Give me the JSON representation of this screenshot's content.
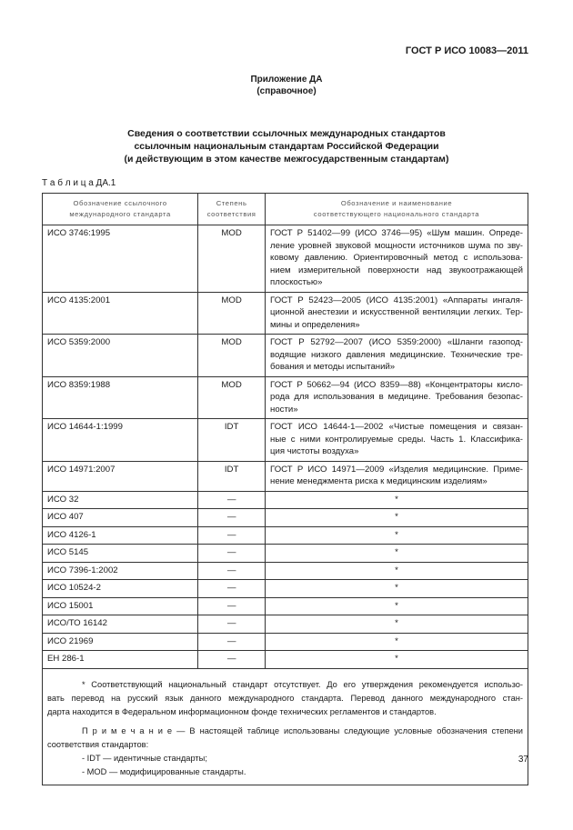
{
  "header": {
    "standard": "ГОСТ Р ИСО 10083—2011"
  },
  "annex": {
    "title": "Приложение ДА",
    "note": "(справочное)"
  },
  "heading": [
    "Сведения о соответствии ссылочных международных стандартов",
    "ссылочным национальным стандартам Российской Федерации",
    "(и действующим в этом качестве межгосударственным стандартам)"
  ],
  "table": {
    "caption": "Т а б л и ц а ДА.1",
    "columns": [
      [
        "Обозначение ссылочного",
        "международного стандарта"
      ],
      [
        "Степень",
        "соответствия"
      ],
      [
        "Обозначение и наименование",
        "соответствующего национального стандарта"
      ]
    ],
    "rows": [
      [
        "ИСО 3746:1995",
        "MOD",
        [
          "ГОСТ Р 51402—99 (ИСО 3746—95) «Шум машин. Опреде-",
          "ление уровней звуковой мощности источников шума по зву-",
          "ковому давлению. Ориентировочный метод с использова-",
          "нием измерительной поверхности над звукоотражающей",
          "плоскостью»"
        ]
      ],
      [
        "ИСО 4135:2001",
        "MOD",
        [
          "ГОСТ Р 52423—2005 (ИСО 4135:2001) «Аппараты ингаля-",
          "ционной анестезии и искусственной вентиляции легких. Тер-",
          "мины и определения»"
        ]
      ],
      [
        "ИСО 5359:2000",
        "MOD",
        [
          "ГОСТ Р 52792—2007 (ИСО 5359:2000) «Шланги газопод-",
          "водящие низкого давления медицинские. Технические тре-",
          "бования и методы испытаний»"
        ]
      ],
      [
        "ИСО 8359:1988",
        "MOD",
        [
          "ГОСТ Р 50662—94 (ИСО 8359—88) «Концентраторы кисло-",
          "рода для использования в медицине. Требования безопас-",
          "ности»"
        ]
      ],
      [
        "ИСО 14644-1:1999",
        "IDT",
        [
          "ГОСТ ИСО 14644-1—2002 «Чистые помещения и связан-",
          "ные с ними контролируемые среды. Часть 1. Классифика-",
          "ция чистоты воздуха»"
        ]
      ],
      [
        "ИСО 14971:2007",
        "IDT",
        [
          "ГОСТ Р ИСО 14971—2009 «Изделия медицинские. Приме-",
          "нение менеджмента риска к медицинским изделиям»"
        ]
      ],
      [
        "ИСО 32",
        "—",
        [
          "*"
        ]
      ],
      [
        "ИСО 407",
        "—",
        [
          "*"
        ]
      ],
      [
        "ИСО 4126-1",
        "—",
        [
          "*"
        ]
      ],
      [
        "ИСО 5145",
        "—",
        [
          "*"
        ]
      ],
      [
        "ИСО 7396-1:2002",
        "—",
        [
          "*"
        ]
      ],
      [
        "ИСО 10524-2",
        "—",
        [
          "*"
        ]
      ],
      [
        "ИСО 15001",
        "—",
        [
          "*"
        ]
      ],
      [
        "ИСО/ТО 16142",
        "—",
        [
          "*"
        ]
      ],
      [
        "ИСО 21969",
        "—",
        [
          "*"
        ]
      ],
      [
        "ЕН 286-1",
        "—",
        [
          "*"
        ]
      ]
    ]
  },
  "footnote": {
    "star": [
      "* Соответствующий национальный стандарт отсутствует. До его утверждения рекомендуется использо-",
      "вать перевод на русский язык данного международного стандарта. Перевод данного международного стан-",
      "дарта находится в Федеральном информационном фонде технических регламентов и стандартов."
    ],
    "note": [
      "П р и м е ч а н и е — В настоящей таблице использованы следующие условные обозначения степени",
      "соответствия стандартов:",
      "- IDT — идентичные стандарты;",
      "- MOD — модифицированные стандарты."
    ]
  },
  "page_number": "37"
}
